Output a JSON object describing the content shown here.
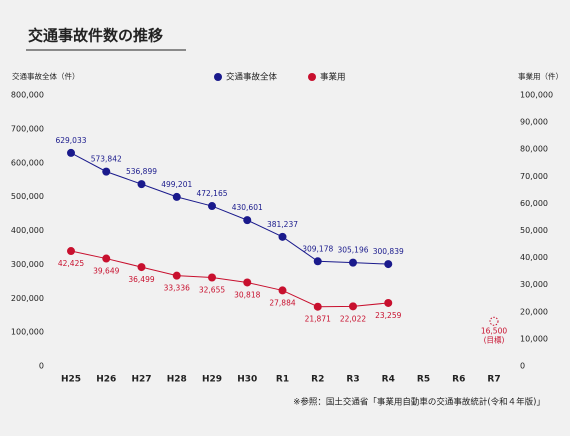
{
  "chart_data": {
    "type": "line",
    "title": "交通事故件数の推移",
    "y_label": "交通事故全体（件）",
    "y2_label": "事業用（件）",
    "source": "※参照：国土交通省「事業用自動車の交通事故統計(令和４年版)」",
    "categories": [
      "H25",
      "H26",
      "H27",
      "H28",
      "H29",
      "H30",
      "R1",
      "R2",
      "R3",
      "R4",
      "R5",
      "R6",
      "R7"
    ],
    "series": [
      {
        "name": "交通事故全体",
        "color": "#1a1a8c",
        "values": [
          629033,
          573842,
          536899,
          499201,
          472165,
          430601,
          381237,
          309178,
          305196,
          300839,
          null,
          null,
          null
        ],
        "value_labels": [
          "629,033",
          "573,842",
          "536,899",
          "499,201",
          "472,165",
          "430,601",
          "381,237",
          "309,178",
          "305,196",
          "300,839",
          null,
          null,
          null
        ]
      },
      {
        "name": "事業用",
        "color": "#c8102e",
        "axis": "y2",
        "values": [
          42425,
          39649,
          36499,
          33336,
          32655,
          30818,
          27884,
          21871,
          22022,
          23259,
          null,
          null,
          null
        ],
        "value_labels": [
          "42,425",
          "39,649",
          "36,499",
          "33,336",
          "32,655",
          "30,818",
          "27,884",
          "21,871",
          "22,022",
          "23,259",
          null,
          null,
          null
        ]
      }
    ],
    "target": {
      "value": 16500,
      "value_label": "16,500",
      "label": "(目標)"
    },
    "ylim": [
      0,
      800000
    ],
    "yticks": [
      0,
      {
        "value": 100000,
        "label": "100,000"
      },
      {
        "value": 200000,
        "label": "200,000"
      },
      {
        "value": 300000,
        "label": "300,000"
      },
      {
        "value": 400000,
        "label": "400,000"
      },
      {
        "value": 500000,
        "label": "500,000"
      },
      {
        "value": 600000,
        "label": "600,000"
      },
      {
        "value": 700000,
        "label": "700,000"
      },
      {
        "value": 800000,
        "label": "800,000"
      }
    ],
    "y2lim": [
      0,
      100000
    ],
    "y2ticks": [
      0,
      {
        "value": 10000,
        "label": "10,000"
      },
      {
        "value": 20000,
        "label": "20,000"
      },
      {
        "value": 30000,
        "label": "30,000"
      },
      {
        "value": 40000,
        "label": "40,000"
      },
      {
        "value": 50000,
        "label": "50,000"
      },
      {
        "value": 60000,
        "label": "60,000"
      },
      {
        "value": 70000,
        "label": "70,000"
      },
      {
        "value": 80000,
        "label": "80,000"
      },
      {
        "value": 90000,
        "label": "90,000"
      },
      {
        "value": 100000,
        "label": "100,000"
      }
    ],
    "grid": false
  }
}
